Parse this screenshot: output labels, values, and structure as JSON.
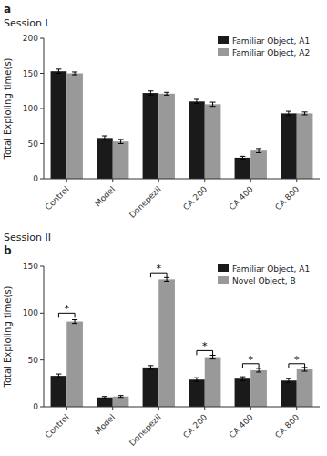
{
  "chart_data": [
    {
      "type": "bar",
      "title": "Session I",
      "annotations": [
        {
          "text": "a"
        }
      ],
      "categories": [
        "Control",
        "Model",
        "Donepezil",
        "CA 200",
        "CA 400",
        "CA 800"
      ],
      "series": [
        {
          "name": "Familiar Object, A1",
          "color": "#1a1a1a",
          "values": [
            153,
            58,
            122,
            110,
            30,
            93
          ],
          "errors": [
            3,
            3,
            3,
            3,
            2,
            3
          ]
        },
        {
          "name": "Familiar Object, A2",
          "color": "#999999",
          "values": [
            150,
            53,
            121,
            106,
            40,
            93
          ],
          "errors": [
            2,
            3,
            2,
            3,
            3,
            2
          ]
        }
      ],
      "y_label": "Total Exploling time(s)",
      "ylim": [
        0,
        200
      ],
      "yticks": [
        0,
        50,
        100,
        150,
        200
      ],
      "grid": false,
      "legend": "upper right"
    },
    {
      "type": "bar",
      "title": "Session II",
      "annotations": [
        {
          "text": "b"
        },
        {
          "text": "*",
          "category": "Control",
          "y": 100
        },
        {
          "text": "*",
          "category": "Donepezil",
          "y": 143
        },
        {
          "text": "*",
          "category": "CA 200",
          "y": 60
        },
        {
          "text": "*",
          "category": "CA 400",
          "y": 46
        },
        {
          "text": "*",
          "category": "CA 800",
          "y": 46
        }
      ],
      "categories": [
        "Control",
        "Model",
        "Donepezil",
        "CA 200",
        "CA 400",
        "CA 800"
      ],
      "series": [
        {
          "name": "Familiar Object, A1",
          "color": "#1a1a1a",
          "values": [
            33,
            10,
            42,
            29,
            30,
            28
          ],
          "errors": [
            2,
            1,
            2,
            2,
            2,
            2
          ]
        },
        {
          "name": "Novel Object, B",
          "color": "#999999",
          "values": [
            91,
            11,
            136,
            53,
            39,
            40
          ],
          "errors": [
            2,
            1,
            2,
            2,
            2,
            2
          ]
        }
      ],
      "y_label": "Total Exploling time(s)",
      "ylim": [
        0,
        150
      ],
      "yticks": [
        0,
        50,
        100,
        150
      ],
      "grid": false,
      "legend": "upper right"
    }
  ]
}
